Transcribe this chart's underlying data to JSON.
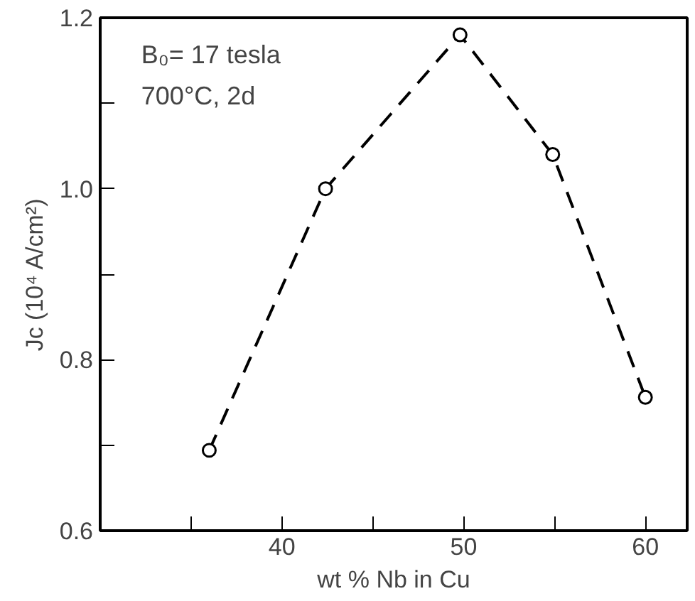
{
  "chart_data": {
    "type": "line",
    "xlabel": "wt % Nb in Cu",
    "ylabel": "Jc (10⁴ A/cm²)",
    "annotations": [
      "B₀= 17 tesla",
      "700°C, 2d"
    ],
    "x": [
      36.0,
      42.4,
      49.8,
      54.9,
      60.0
    ],
    "series": [
      {
        "color": "#000000",
        "values": [
          0.694,
          1.0,
          1.18,
          1.04,
          0.756
        ]
      }
    ],
    "xlim": [
      30,
      62.3
    ],
    "ylim": [
      0.6,
      1.2
    ],
    "xticks": [
      {
        "value": 35,
        "label": null
      },
      40,
      {
        "value": 45,
        "label": null
      },
      50,
      {
        "value": 55,
        "label": null
      },
      60
    ],
    "yticks": [
      {
        "value": 0.6,
        "label": "0.6"
      },
      {
        "value": 0.7,
        "label": null
      },
      {
        "value": 0.8,
        "label": "0.8"
      },
      {
        "value": 0.9,
        "label": null
      },
      {
        "value": 1.0,
        "label": "1.0"
      },
      {
        "value": 1.1,
        "label": null
      },
      {
        "value": 1.2,
        "label": "1.2"
      }
    ],
    "marker": "circle",
    "line_style": "dashed",
    "grid": false
  }
}
